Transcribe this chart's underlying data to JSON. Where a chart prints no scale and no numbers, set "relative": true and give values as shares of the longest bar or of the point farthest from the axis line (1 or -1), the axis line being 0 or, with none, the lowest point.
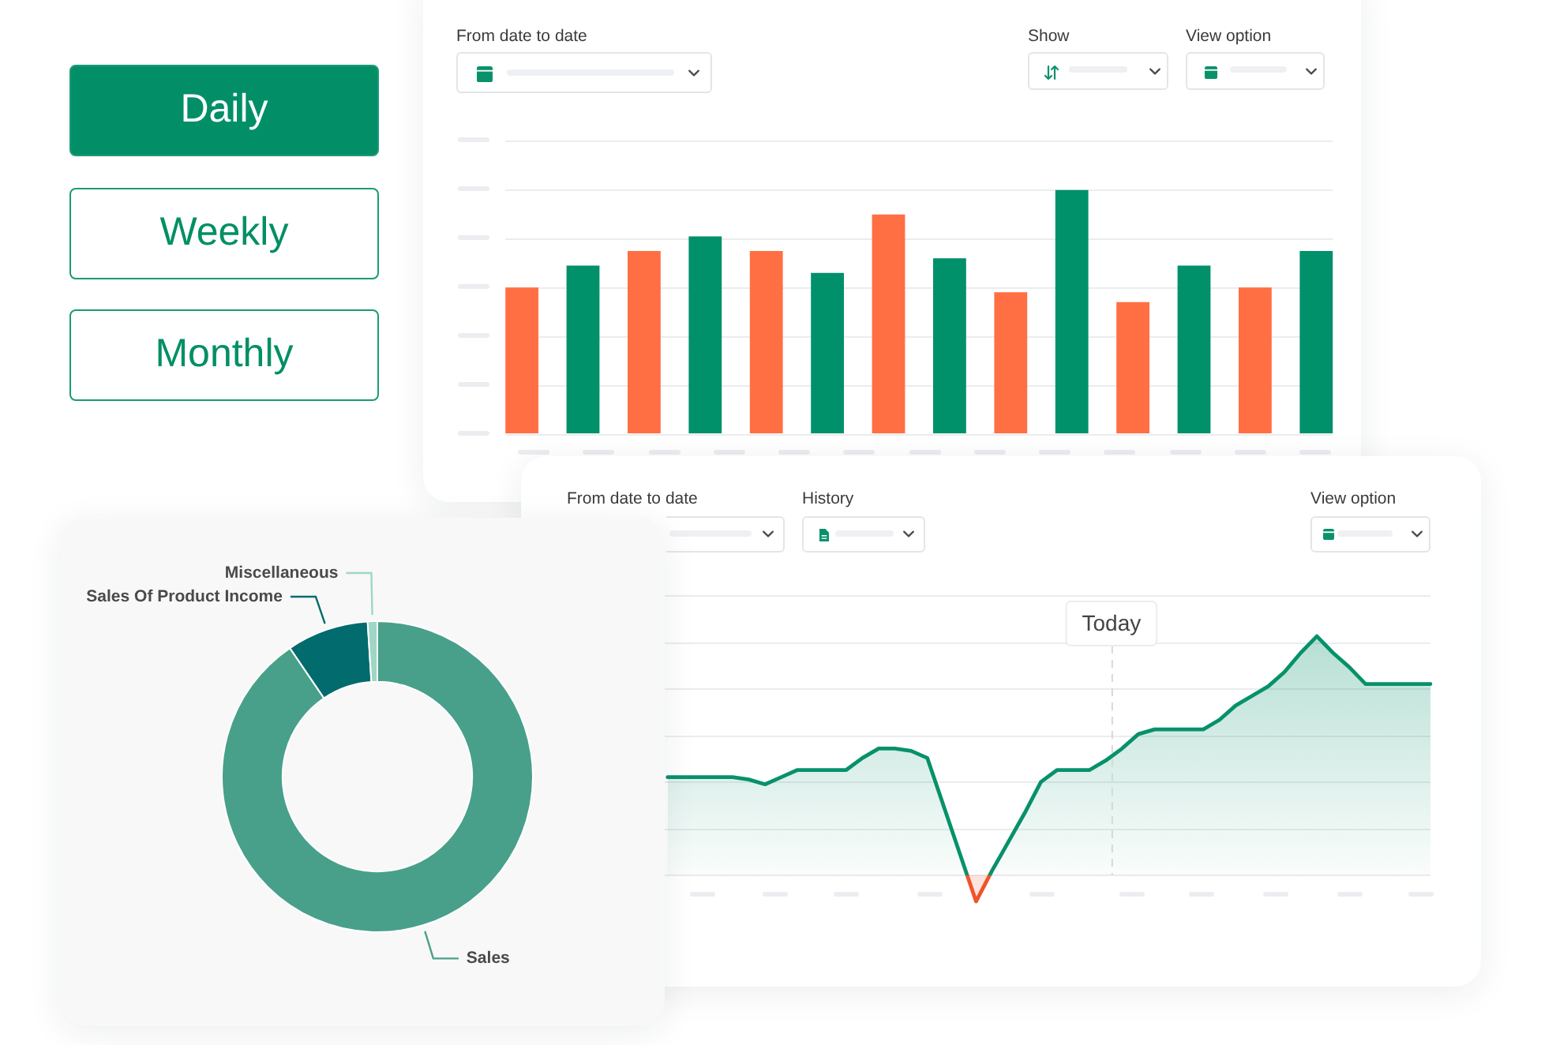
{
  "chart_data": [
    {
      "type": "other",
      "annotations": [
        "Daily",
        "Weekly",
        "Monthly"
      ]
    },
    {
      "type": "bar",
      "annotations": [
        "From date to date",
        "Show",
        "View option"
      ],
      "categories": [
        null,
        null,
        null,
        null,
        null,
        null,
        null,
        null,
        null,
        null,
        null,
        null,
        null,
        null
      ],
      "values": [
        0.6,
        0.69,
        0.75,
        0.81,
        0.75,
        0.66,
        0.9,
        0.72,
        0.58,
        1,
        0.54,
        0.69,
        0.6,
        0.75
      ],
      "colors": [
        "#ff6f43",
        "#00906a",
        "#ff6f43",
        "#00906a",
        "#ff6f43",
        "#00906a",
        "#ff6f43",
        "#00906a",
        "#ff6f43",
        "#00906a",
        "#ff6f43",
        "#00906a",
        "#ff6f43",
        "#00906a"
      ],
      "relative": true,
      "grid": "y"
    },
    {
      "type": "donut",
      "categories": [
        "Sales",
        "Sales Of Product Income",
        "Miscellaneous"
      ],
      "values": [
        90.5,
        8.5,
        1
      ],
      "colors": [
        "#48a08a",
        "#016b6d",
        "#9fd6c5"
      ]
    },
    {
      "type": "area",
      "annotations": [
        "From date to date",
        "History",
        "View option",
        "Today"
      ],
      "categories": [
        null,
        null,
        null,
        null,
        null,
        null,
        null,
        null,
        null,
        null,
        null,
        null,
        null,
        null,
        null,
        null,
        null,
        null,
        null,
        null,
        null,
        null,
        null,
        null,
        null,
        null,
        null,
        null,
        null,
        null,
        null,
        null,
        null,
        null,
        null,
        null,
        null,
        null,
        null,
        null,
        null,
        null,
        null,
        null,
        null,
        null,
        null,
        null,
        null,
        null,
        null,
        null,
        null,
        null
      ],
      "series": [
        {
          "color": "#07916b",
          "colors": [
            null,
            null,
            null,
            null,
            null,
            null,
            "#07916b",
            "#07916b",
            "#07916b",
            "#07916b",
            "#07916b",
            "#07916b",
            "#07916b",
            "#07916b",
            "#07916b",
            "#07916b",
            "#07916b",
            "#07916b",
            "#07916b",
            "#07916b",
            "#07916b",
            "#07916b",
            "#07916b",
            "#07916b",
            "#07916b",
            "#f0532b",
            "#07916b",
            "#07916b",
            "#07916b",
            "#07916b",
            "#07916b",
            "#07916b",
            "#07916b",
            "#07916b",
            "#07916b",
            "#07916b",
            "#07916b",
            "#07916b",
            "#07916b",
            "#07916b",
            "#07916b",
            "#07916b",
            "#07916b",
            "#07916b",
            "#07916b",
            "#07916b",
            "#07916b",
            "#07916b",
            "#07916b",
            "#07916b",
            "#07916b",
            "#07916b",
            "#07916b",
            "#07916b"
          ],
          "values": [
            null,
            null,
            null,
            null,
            null,
            null,
            0.41,
            0.41,
            0.41,
            0.41,
            0.41,
            0.4,
            0.38,
            0.41,
            0.44,
            0.44,
            0.44,
            0.44,
            0.49,
            0.53,
            0.53,
            0.52,
            0.49,
            0.29,
            0.09,
            -0.11,
            0.02,
            0.14,
            0.26,
            0.39,
            0.44,
            0.44,
            0.44,
            0.48,
            0.53,
            0.59,
            0.61,
            0.61,
            0.61,
            0.61,
            0.65,
            0.71,
            0.75,
            0.79,
            0.85,
            0.93,
            1,
            0.93,
            0.87,
            0.8,
            0.8,
            0.8,
            0.8,
            0.8
          ]
        }
      ],
      "relative": true,
      "grid": "y"
    }
  ]
}
